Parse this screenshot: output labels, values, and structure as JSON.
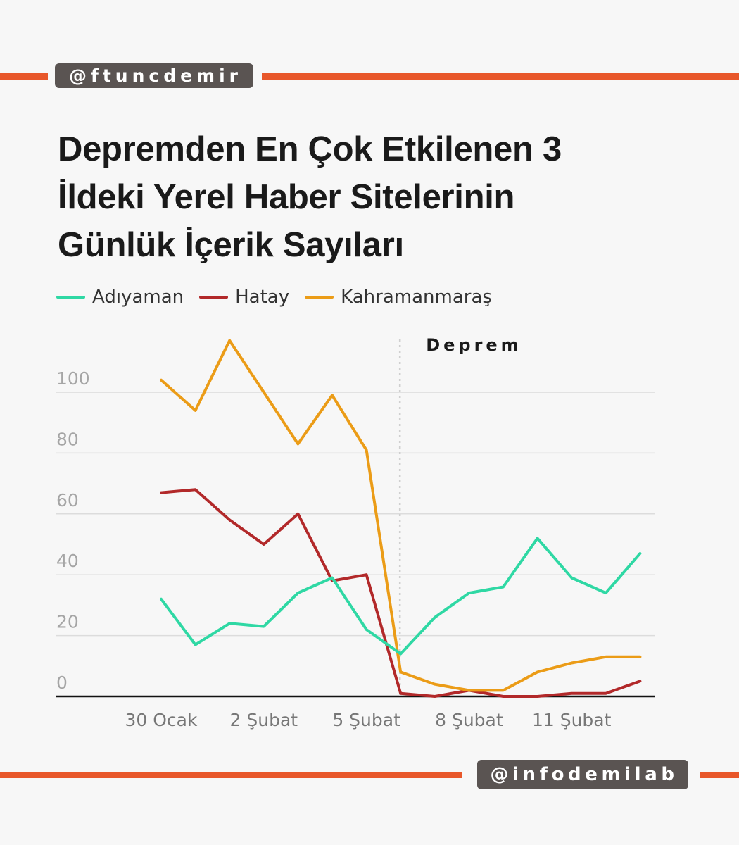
{
  "header": {
    "handle_top": "@ftuncdemir",
    "handle_bottom": "@infodemilab",
    "title_lines": [
      "Depremden En Çok Etkilenen 3",
      "İldeki Yerel Haber Sitelerinin",
      "Günlük İçerik Sayıları"
    ]
  },
  "colors": {
    "accent": "#e8572a",
    "tag_bg": "#5a5452",
    "Adıyaman": "#2fd8a4",
    "Hatay": "#b2292a",
    "Kahramanmaraş": "#eb9c17"
  },
  "chart_data": {
    "type": "line",
    "x": [
      "30 Ocak",
      "31 Ocak",
      "1 Şubat",
      "2 Şubat",
      "3 Şubat",
      "4 Şubat",
      "5 Şubat",
      "6 Şubat",
      "7 Şubat",
      "8 Şubat",
      "9 Şubat",
      "10 Şubat",
      "11 Şubat",
      "12 Şubat",
      "13 Şubat"
    ],
    "x_tick_labels": [
      "30 Ocak",
      "2 Şubat",
      "5 Şubat",
      "8 Şubat",
      "11 Şubat"
    ],
    "series": [
      {
        "name": "Adıyaman",
        "values": [
          32,
          17,
          24,
          23,
          34,
          39,
          22,
          14,
          26,
          34,
          36,
          52,
          39,
          34,
          47
        ]
      },
      {
        "name": "Hatay",
        "values": [
          67,
          68,
          58,
          50,
          60,
          38,
          40,
          1,
          0,
          2,
          0,
          0,
          1,
          1,
          5
        ]
      },
      {
        "name": "Kahramanmaraş",
        "values": [
          104,
          94,
          117,
          100,
          83,
          99,
          81,
          8,
          4,
          2,
          2,
          8,
          11,
          13,
          13
        ]
      }
    ],
    "y_ticks": [
      0,
      20,
      40,
      60,
      80,
      100
    ],
    "ylim": [
      0,
      110
    ],
    "annotation": {
      "label": "Deprem",
      "x_position": 7
    },
    "legend": "top-left",
    "grid": true
  }
}
